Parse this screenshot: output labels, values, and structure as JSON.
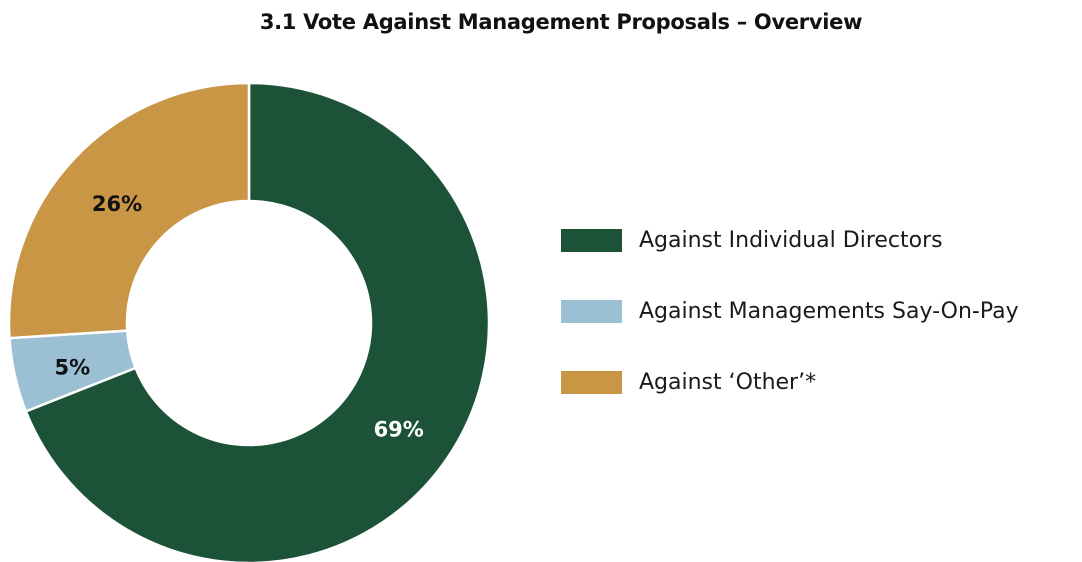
{
  "chart_data": {
    "type": "pie",
    "title": "3.1 Vote Against Management Proposals – Overview",
    "categories": [
      "Against Individual Directors",
      "Against Managements Say-On-Pay",
      "Against ‘Other’*"
    ],
    "values": [
      69,
      5,
      26
    ],
    "data_labels": [
      "69%",
      "5%",
      "26%"
    ],
    "colors": [
      "#1c5238",
      "#9bc0d4",
      "#c99646"
    ],
    "label_colors": [
      "#ffffff",
      "#111111",
      "#111111"
    ],
    "donut": true,
    "legend_position": "right"
  }
}
